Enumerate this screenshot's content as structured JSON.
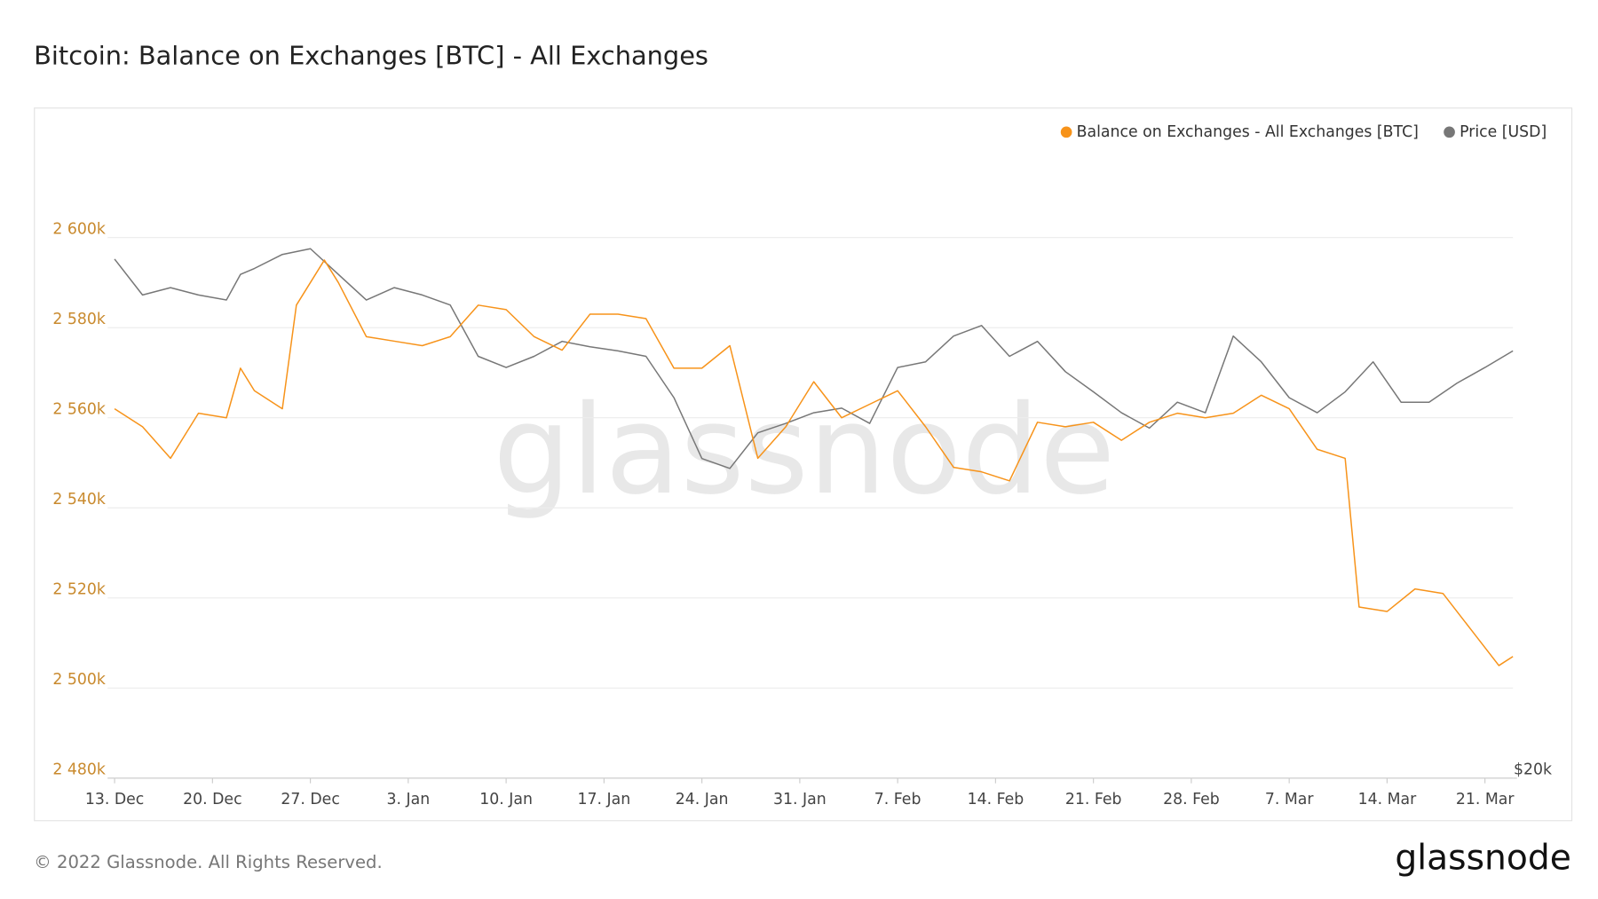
{
  "chart_data": {
    "type": "line",
    "title": "Bitcoin: Balance on Exchanges [BTC] - All Exchanges",
    "watermark": "glassnode",
    "footer": "© 2022 Glassnode. All Rights Reserved.",
    "logo": "glassnode",
    "xlim": [
      -0.5,
      100
    ],
    "xticks": [
      {
        "value": 0,
        "label": "13. Dec"
      },
      {
        "value": 7,
        "label": "20. Dec"
      },
      {
        "value": 14,
        "label": "27. Dec"
      },
      {
        "value": 21,
        "label": "3. Jan"
      },
      {
        "value": 28,
        "label": "10. Jan"
      },
      {
        "value": 35,
        "label": "17. Jan"
      },
      {
        "value": 42,
        "label": "24. Jan"
      },
      {
        "value": 49,
        "label": "31. Jan"
      },
      {
        "value": 56,
        "label": "7. Feb"
      },
      {
        "value": 63,
        "label": "14. Feb"
      },
      {
        "value": 70,
        "label": "21. Feb"
      },
      {
        "value": 77,
        "label": "28. Feb"
      },
      {
        "value": 84,
        "label": "7. Mar"
      },
      {
        "value": 91,
        "label": "14. Mar"
      },
      {
        "value": 98,
        "label": "21. Mar"
      }
    ],
    "ylim": [
      2480000,
      2620000
    ],
    "yticks": [
      {
        "value": 2480000,
        "label": "2 480k"
      },
      {
        "value": 2500000,
        "label": "2 500k"
      },
      {
        "value": 2520000,
        "label": "2 520k"
      },
      {
        "value": 2540000,
        "label": "2 540k"
      },
      {
        "value": 2560000,
        "label": "2 560k"
      },
      {
        "value": 2580000,
        "label": "2 580k"
      },
      {
        "value": 2600000,
        "label": "2 600k"
      }
    ],
    "y2lim": [
      20000,
      60000
    ],
    "y2log": true,
    "y2ticks": [
      {
        "value": 20000,
        "label": "$20k"
      }
    ],
    "grid": true,
    "legend": "top-right",
    "series": [
      {
        "name": "Balance on Exchanges - All Exchanges [BTC]",
        "color": "#f7931a",
        "x": [
          0,
          2,
          4,
          6,
          8,
          9,
          10,
          12,
          13,
          15,
          16,
          18,
          20,
          22,
          24,
          26,
          28,
          30,
          32,
          34,
          36,
          38,
          40,
          42,
          44,
          46,
          48,
          50,
          52,
          54,
          56,
          58,
          60,
          62,
          64,
          66,
          68,
          70,
          72,
          74,
          76,
          78,
          80,
          82,
          84,
          86,
          88,
          89,
          91,
          93,
          95,
          97,
          99,
          100
        ],
        "values": [
          2562000,
          2558000,
          2551000,
          2561000,
          2560000,
          2571000,
          2566000,
          2562000,
          2585000,
          2595000,
          2590000,
          2578000,
          2577000,
          2576000,
          2578000,
          2585000,
          2584000,
          2578000,
          2575000,
          2583000,
          2583000,
          2582000,
          2571000,
          2571000,
          2576000,
          2551000,
          2558000,
          2568000,
          2560000,
          2563000,
          2566000,
          2558000,
          2549000,
          2548000,
          2546000,
          2559000,
          2558000,
          2559000,
          2555000,
          2559000,
          2561000,
          2560000,
          2561000,
          2565000,
          2562000,
          2553000,
          2551000,
          2518000,
          2517000,
          2522000,
          2521000,
          2513000,
          2505000,
          2507000
        ]
      },
      {
        "name": "Price [USD]",
        "color": "#777777",
        "axis": "y2",
        "x": [
          0,
          2,
          4,
          6,
          8,
          9,
          10,
          12,
          14,
          16,
          18,
          20,
          22,
          24,
          26,
          28,
          30,
          32,
          34,
          36,
          38,
          40,
          42,
          44,
          46,
          48,
          50,
          52,
          54,
          56,
          58,
          60,
          62,
          64,
          66,
          68,
          70,
          72,
          74,
          76,
          78,
          80,
          82,
          84,
          86,
          88,
          90,
          92,
          94,
          96,
          98,
          100
        ],
        "values": [
          49400,
          46400,
          47000,
          46400,
          46000,
          48100,
          48600,
          49800,
          50300,
          48100,
          46000,
          47000,
          46400,
          45600,
          41700,
          40900,
          41700,
          42800,
          42400,
          42100,
          41700,
          38800,
          34900,
          34300,
          36500,
          37100,
          37800,
          38100,
          37100,
          40900,
          41300,
          43200,
          44000,
          41700,
          42800,
          40600,
          39200,
          37800,
          36800,
          38500,
          37800,
          43200,
          41300,
          38800,
          37800,
          39200,
          41300,
          38500,
          38500,
          39800,
          40900,
          42100
        ]
      }
    ]
  }
}
